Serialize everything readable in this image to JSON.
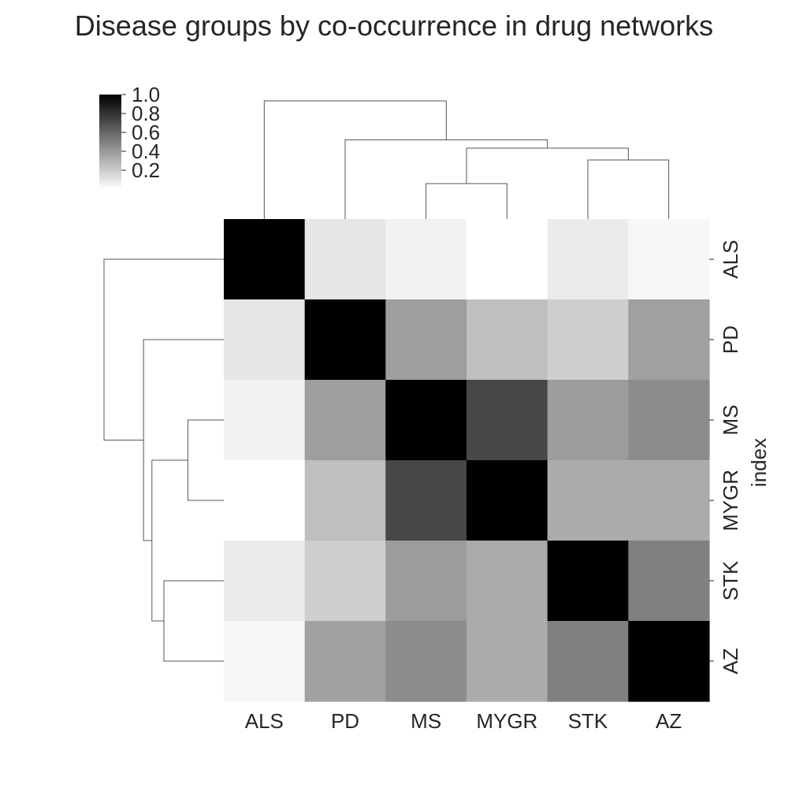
{
  "chart_data": {
    "type": "heatmap",
    "title": "Disease groups by co-occurrence in drug networks",
    "ylabel": "index",
    "row_labels": [
      "ALS",
      "PD",
      "MS",
      "MYGR",
      "STK",
      "AZ"
    ],
    "col_labels": [
      "ALS",
      "PD",
      "MS",
      "MYGR",
      "STK",
      "AZ"
    ],
    "values": [
      [
        1.0,
        0.1,
        0.05,
        0.0,
        0.08,
        0.03
      ],
      [
        0.1,
        1.0,
        0.38,
        0.25,
        0.19,
        0.37
      ],
      [
        0.05,
        0.38,
        1.0,
        0.72,
        0.39,
        0.45
      ],
      [
        0.0,
        0.25,
        0.72,
        1.0,
        0.33,
        0.33
      ],
      [
        0.08,
        0.19,
        0.39,
        0.33,
        1.0,
        0.5
      ],
      [
        0.03,
        0.37,
        0.45,
        0.33,
        0.5,
        1.0
      ]
    ],
    "colorbar": {
      "ticks": [
        "1.0",
        "0.8",
        "0.6",
        "0.4",
        "0.2"
      ],
      "range": [
        0.0,
        1.0
      ],
      "colormap": "white-to-black (Greys)"
    },
    "dendrogram": {
      "leaf_order": [
        "ALS",
        "PD",
        "MS",
        "MYGR",
        "STK",
        "AZ"
      ],
      "merges": [
        {
          "left": "MS",
          "right": "MYGR",
          "height": 0.3
        },
        {
          "left": "STK",
          "right": "AZ",
          "height": 0.5
        },
        {
          "left": "MS+MYGR",
          "right": "STK+AZ",
          "height": 0.6
        },
        {
          "left": "PD",
          "right": "MS+MYGR+STK+AZ",
          "height": 0.67
        },
        {
          "left": "ALS",
          "right": "PD+MS+MYGR+STK+AZ",
          "height": 1.0
        }
      ]
    },
    "line_color": "#555555",
    "text_color": "#262626"
  }
}
